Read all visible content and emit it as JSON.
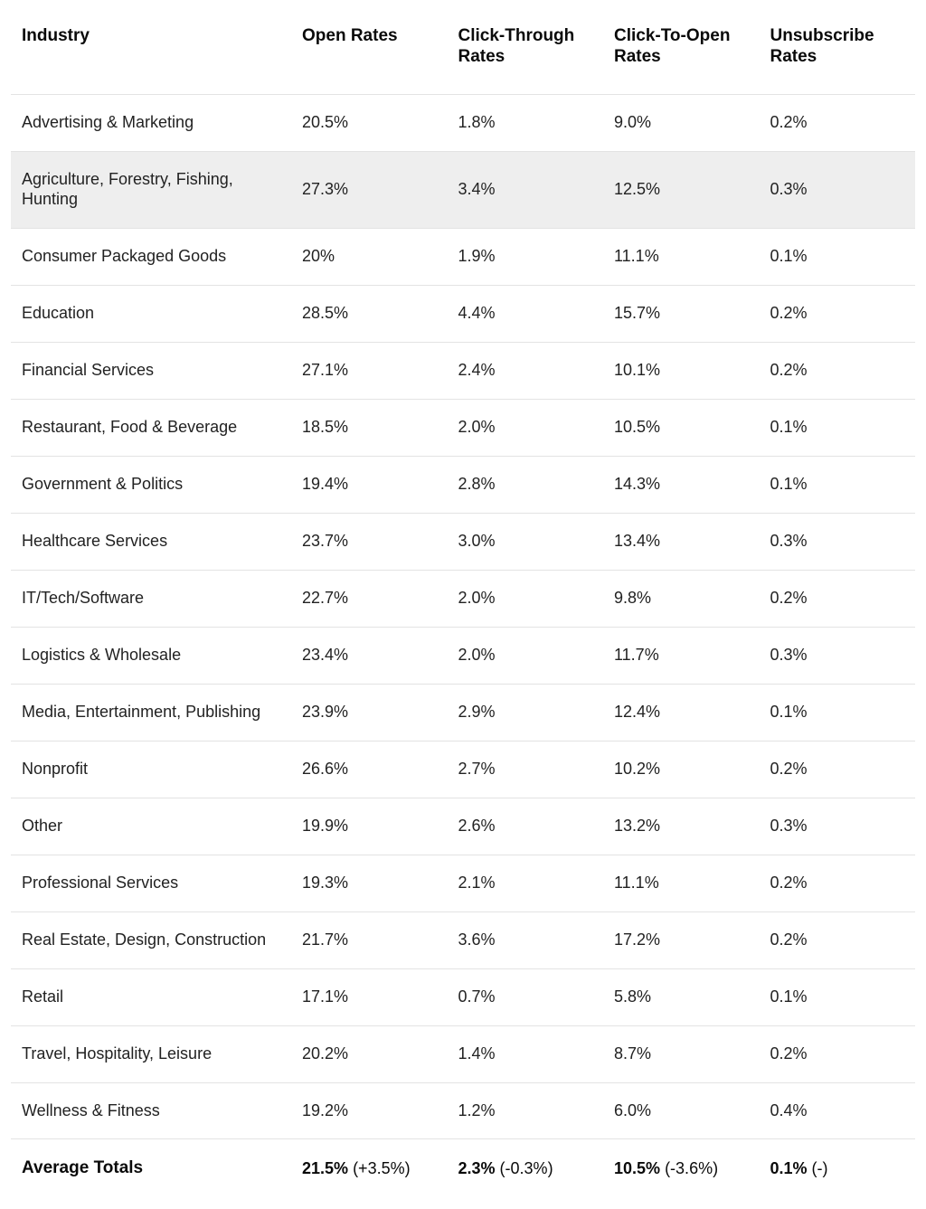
{
  "table": {
    "type": "table",
    "background_color": "#ffffff",
    "border_color": "#e3e3e3",
    "text_color": "#222222",
    "header_text_color": "#0a0a0a",
    "highlight_background": "#eeeeee",
    "header_font_size_pt": 14,
    "body_font_size_pt": 13.5,
    "header_font_weight": 700,
    "body_font_weight": 400,
    "column_widths_pct": [
      31,
      17.25,
      17.25,
      17.25,
      17.25
    ],
    "columns": [
      "Industry",
      "Open Rates",
      "Click-Through Rates",
      "Click-To-Open Rates",
      "Unsubscribe Rates"
    ],
    "rows": [
      {
        "industry": "Advertising & Marketing",
        "open": "20.5%",
        "ctr": "1.8%",
        "cto": "9.0%",
        "unsub": "0.2%",
        "highlight": false
      },
      {
        "industry": "Agriculture, Forestry, Fishing, Hunting",
        "open": "27.3%",
        "ctr": "3.4%",
        "cto": "12.5%",
        "unsub": "0.3%",
        "highlight": true
      },
      {
        "industry": "Consumer Packaged Goods",
        "open": "20%",
        "ctr": "1.9%",
        "cto": "11.1%",
        "unsub": "0.1%",
        "highlight": false
      },
      {
        "industry": "Education",
        "open": "28.5%",
        "ctr": "4.4%",
        "cto": "15.7%",
        "unsub": "0.2%",
        "highlight": false
      },
      {
        "industry": "Financial Services",
        "open": "27.1%",
        "ctr": "2.4%",
        "cto": "10.1%",
        "unsub": "0.2%",
        "highlight": false
      },
      {
        "industry": "Restaurant, Food & Beverage",
        "open": "18.5%",
        "ctr": "2.0%",
        "cto": "10.5%",
        "unsub": "0.1%",
        "highlight": false
      },
      {
        "industry": "Government & Politics",
        "open": "19.4%",
        "ctr": "2.8%",
        "cto": "14.3%",
        "unsub": "0.1%",
        "highlight": false
      },
      {
        "industry": "Healthcare Services",
        "open": "23.7%",
        "ctr": "3.0%",
        "cto": "13.4%",
        "unsub": "0.3%",
        "highlight": false
      },
      {
        "industry": "IT/Tech/Software",
        "open": "22.7%",
        "ctr": "2.0%",
        "cto": "9.8%",
        "unsub": "0.2%",
        "highlight": false
      },
      {
        "industry": "Logistics & Wholesale",
        "open": "23.4%",
        "ctr": "2.0%",
        "cto": "11.7%",
        "unsub": "0.3%",
        "highlight": false
      },
      {
        "industry": "Media, Entertainment, Publishing",
        "open": "23.9%",
        "ctr": "2.9%",
        "cto": "12.4%",
        "unsub": "0.1%",
        "highlight": false
      },
      {
        "industry": "Nonprofit",
        "open": "26.6%",
        "ctr": "2.7%",
        "cto": "10.2%",
        "unsub": "0.2%",
        "highlight": false
      },
      {
        "industry": "Other",
        "open": "19.9%",
        "ctr": "2.6%",
        "cto": "13.2%",
        "unsub": "0.3%",
        "highlight": false
      },
      {
        "industry": "Professional Services",
        "open": "19.3%",
        "ctr": "2.1%",
        "cto": "11.1%",
        "unsub": "0.2%",
        "highlight": false
      },
      {
        "industry": "Real Estate, Design, Construction",
        "open": "21.7%",
        "ctr": "3.6%",
        "cto": "17.2%",
        "unsub": "0.2%",
        "highlight": false
      },
      {
        "industry": "Retail",
        "open": "17.1%",
        "ctr": "0.7%",
        "cto": "5.8%",
        "unsub": "0.1%",
        "highlight": false
      },
      {
        "industry": "Travel, Hospitality, Leisure",
        "open": "20.2%",
        "ctr": "1.4%",
        "cto": "8.7%",
        "unsub": "0.2%",
        "highlight": false
      },
      {
        "industry": "Wellness & Fitness",
        "open": "19.2%",
        "ctr": "1.2%",
        "cto": "6.0%",
        "unsub": "0.4%",
        "highlight": false
      }
    ],
    "footer": {
      "label": "Average Totals",
      "open": {
        "value": "21.5%",
        "delta": "(+3.5%)"
      },
      "ctr": {
        "value": "2.3%",
        "delta": "(-0.3%)"
      },
      "cto": {
        "value": "10.5%",
        "delta": "(-3.6%)"
      },
      "unsub": {
        "value": "0.1%",
        "delta": "(-)"
      }
    }
  }
}
